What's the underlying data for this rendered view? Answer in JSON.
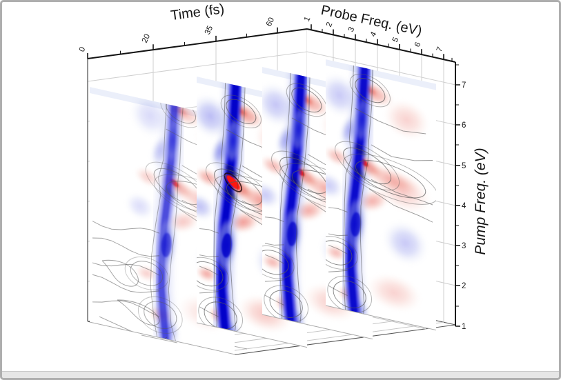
{
  "chart_data": {
    "type": "heatmap",
    "title": "",
    "description": "3D stacked 2D contour spectra (pump-probe) at four waiting times; blue negative and red positive features with gray contour lines",
    "axes": {
      "time": {
        "label": "Time (fs)",
        "unit": "fs",
        "ticks": [
          "0",
          "20",
          "35",
          "60"
        ]
      },
      "probe": {
        "label": "Probe Freq. (eV)",
        "unit": "eV",
        "ticks": [
          "1",
          "2",
          "3",
          "4",
          "5",
          "6",
          "7"
        ],
        "range": [
          0.8,
          7.6
        ]
      },
      "pump": {
        "label": "Pump Freq. (eV)",
        "unit": "eV",
        "ticks": [
          "1",
          "2",
          "3",
          "4",
          "5",
          "6",
          "7"
        ],
        "range": [
          1.0,
          7.6
        ]
      }
    },
    "colormap": {
      "positive_core": "#e2261c",
      "positive_hot": "#ff1808",
      "negative_core": "#0b0bd0",
      "zero": "#ffffff",
      "contour": "#5a5a5a"
    },
    "slices": [
      {
        "time_fs": 0,
        "strength": 0.55,
        "hot_core": false
      },
      {
        "time_fs": 20,
        "strength": 1.0,
        "hot_core": true
      },
      {
        "time_fs": 35,
        "strength": 0.85,
        "hot_core": false
      },
      {
        "time_fs": 60,
        "strength": 0.8,
        "hot_core": false
      }
    ],
    "features": [
      {
        "id": "esa-band",
        "kind": "band",
        "sign": "neg",
        "points": [
          [
            4.62,
            7.6
          ],
          [
            4.52,
            6.5
          ],
          [
            4.42,
            5.55
          ],
          [
            4.33,
            5.05
          ],
          [
            4.27,
            4.6
          ],
          [
            4.12,
            3.85
          ],
          [
            4.02,
            3.0
          ],
          [
            4.0,
            2.2
          ],
          [
            4.12,
            1.3
          ],
          [
            4.2,
            0.8
          ]
        ]
      },
      {
        "id": "upper-red-lobe",
        "kind": "blob",
        "sign": "pos",
        "probe": 5.0,
        "pump": 6.85,
        "rx": 0.95,
        "ry": 0.5,
        "rot": 14,
        "level": 0.5
      },
      {
        "id": "upper-red-core",
        "kind": "blob",
        "sign": "pos",
        "probe": 4.85,
        "pump": 6.9,
        "rx": 0.45,
        "ry": 0.28,
        "rot": 20,
        "level": 0.72,
        "contour": 1.5
      },
      {
        "id": "upper-right-wash",
        "kind": "blob",
        "sign": "pos",
        "probe": 6.45,
        "pump": 6.35,
        "rx": 1.05,
        "ry": 0.85,
        "rot": 0,
        "level": 0.25
      },
      {
        "id": "diagonal-peak-mid",
        "kind": "blob",
        "sign": "pos",
        "probe": 4.72,
        "pump": 4.93,
        "rx": 0.85,
        "ry": 0.4,
        "rot": 22,
        "level": 0.65,
        "contour": 1.3
      },
      {
        "id": "diagonal-peak",
        "kind": "blob",
        "sign": "pos",
        "probe": 4.58,
        "pump": 5.0,
        "rx": 0.44,
        "ry": 0.23,
        "rot": 38,
        "level": 0.95
      },
      {
        "id": "cross-fan-right",
        "kind": "blob",
        "sign": "pos",
        "probe": 5.75,
        "pump": 4.72,
        "rx": 1.35,
        "ry": 0.5,
        "rot": 9,
        "level": 0.45,
        "contour": 1.15
      },
      {
        "id": "fan-wash",
        "kind": "blob",
        "sign": "pos",
        "probe": 6.3,
        "pump": 4.45,
        "rx": 1.3,
        "ry": 0.85,
        "rot": 6,
        "level": 0.27
      },
      {
        "id": "left-red-lobe",
        "kind": "blob",
        "sign": "pos",
        "probe": 3.4,
        "pump": 5.0,
        "rx": 0.62,
        "ry": 0.4,
        "rot": 12,
        "level": 0.4
      },
      {
        "id": "below-peak-red",
        "kind": "blob",
        "sign": "pos",
        "probe": 4.95,
        "pump": 4.05,
        "rx": 0.8,
        "ry": 0.45,
        "rot": -28,
        "level": 0.45
      },
      {
        "id": "low-left-red",
        "kind": "blob",
        "sign": "pos",
        "probe": 3.35,
        "pump": 2.5,
        "rx": 0.52,
        "ry": 0.36,
        "rot": 0,
        "level": 0.4,
        "contour": 1.35
      },
      {
        "id": "bottom-red",
        "kind": "blob",
        "sign": "pos",
        "probe": 3.95,
        "pump": 1.5,
        "rx": 0.55,
        "ry": 0.42,
        "rot": 0,
        "level": 0.55,
        "contour": 1.3
      },
      {
        "id": "bottom-right-wash",
        "kind": "blob",
        "sign": "pos",
        "probe": 5.9,
        "pump": 1.8,
        "rx": 1.25,
        "ry": 0.8,
        "rot": 0,
        "level": 0.25
      },
      {
        "id": "upper-left-blue-wash",
        "kind": "blob",
        "sign": "neg",
        "probe": 3.5,
        "pump": 6.6,
        "rx": 0.95,
        "ry": 0.95,
        "rot": 0,
        "level": 0.28
      },
      {
        "id": "blue-diag-upper-left",
        "kind": "blob",
        "sign": "neg",
        "probe": 3.95,
        "pump": 5.75,
        "rx": 0.42,
        "ry": 0.8,
        "rot": 20,
        "level": 0.45
      },
      {
        "id": "band-bulge-upper",
        "kind": "blob",
        "sign": "neg",
        "probe": 4.5,
        "pump": 6.1,
        "rx": 0.36,
        "ry": 0.95,
        "rot": 6,
        "level": 0.75
      },
      {
        "id": "band-bulge-lower",
        "kind": "blob",
        "sign": "neg",
        "probe": 4.22,
        "pump": 3.35,
        "rx": 0.48,
        "ry": 1.15,
        "rot": 6,
        "level": 0.85
      },
      {
        "id": "right-low-blue-wash",
        "kind": "blob",
        "sign": "neg",
        "probe": 6.4,
        "pump": 3.15,
        "rx": 1.05,
        "ry": 0.95,
        "rot": 0,
        "level": 0.28
      },
      {
        "id": "left-mid-blue-wash",
        "kind": "blob",
        "sign": "neg",
        "probe": 3.05,
        "pump": 4.2,
        "rx": 0.7,
        "ry": 0.6,
        "rot": 0,
        "level": 0.26
      },
      {
        "id": "bottom-blue",
        "kind": "blob",
        "sign": "neg",
        "probe": 4.32,
        "pump": 1.15,
        "rx": 0.5,
        "ry": 0.55,
        "rot": 0,
        "level": 0.55
      },
      {
        "id": "fan-upper-contour",
        "kind": "contour-line",
        "points": [
          [
            4.9,
            5.5
          ],
          [
            5.8,
            5.35
          ],
          [
            6.8,
            5.3
          ],
          [
            7.6,
            5.45
          ]
        ]
      },
      {
        "id": "fan-lower-contour",
        "kind": "contour-line",
        "points": [
          [
            4.8,
            4.35
          ],
          [
            5.9,
            4.1
          ],
          [
            7.0,
            3.9
          ],
          [
            7.6,
            3.85
          ]
        ]
      },
      {
        "id": "fan-lower-contour-2",
        "kind": "contour-line",
        "points": [
          [
            4.9,
            4.6
          ],
          [
            6.0,
            4.45
          ],
          [
            7.2,
            4.3
          ],
          [
            7.6,
            4.3
          ]
        ]
      },
      {
        "id": "upper-area-contour",
        "kind": "contour-line",
        "points": [
          [
            4.2,
            6.35
          ],
          [
            5.2,
            6.2
          ],
          [
            6.3,
            6.0
          ],
          [
            7.3,
            6.1
          ]
        ]
      },
      {
        "id": "lower-left-contours",
        "kind": "wiggles",
        "pump_levels": [
          1.55,
          2.05,
          2.55,
          3.05,
          3.55
        ],
        "probe_to": 4.05
      }
    ]
  }
}
